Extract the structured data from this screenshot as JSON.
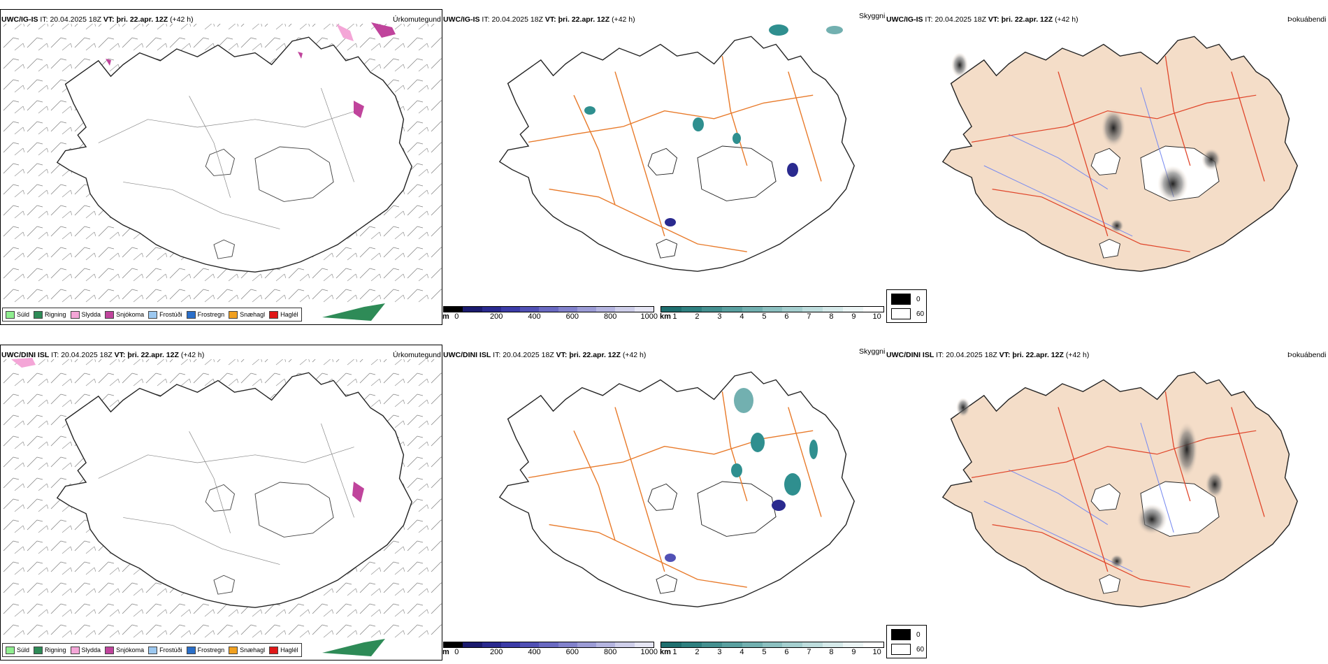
{
  "rows": [
    {
      "id": "row1",
      "model": "UWC/IG-IS",
      "it_label": "IT:",
      "it_value": "20.04.2025 18Z",
      "vt_label": "VT:",
      "vt_value": "þri. 22.apr. 12Z",
      "lead": "(+42 h)",
      "titles": {
        "precip": "Úrkomutegund",
        "ceiling": "Skyggni",
        "fog": "Þokuábendi"
      }
    },
    {
      "id": "row2",
      "model": "UWC/DINI ISL",
      "it_label": "IT:",
      "it_value": "20.04.2025 18Z",
      "vt_label": "VT:",
      "vt_value": "þri. 22.apr. 12Z",
      "lead": "(+42 h)",
      "titles": {
        "precip": "Úrkomutegund",
        "ceiling": "Skyggni",
        "fog": "Þokuábendi"
      }
    }
  ],
  "precip_legend": [
    {
      "label": "Súld",
      "color": "#90ee90"
    },
    {
      "label": "Rigning",
      "color": "#2e8b57"
    },
    {
      "label": "Slydda",
      "color": "#f4a6d7"
    },
    {
      "label": "Snjókoma",
      "color": "#c0449c"
    },
    {
      "label": "Frostúði",
      "color": "#9cc8f0"
    },
    {
      "label": "Frostregn",
      "color": "#2a6fc9"
    },
    {
      "label": "Snæhagl",
      "color": "#f0a020"
    },
    {
      "label": "Haglél",
      "color": "#e01818"
    }
  ],
  "ceiling_scale": {
    "unit": "m",
    "ticks": [
      "0",
      "200",
      "400",
      "600",
      "800",
      "1000"
    ],
    "colors": [
      "#000000",
      "#1b1b6e",
      "#2a2a8f",
      "#3c3ca8",
      "#5151b5",
      "#6a6ac2",
      "#8282cc",
      "#9c9cd6",
      "#b5b5e0",
      "#cfcfea",
      "#e6e6f4"
    ]
  },
  "visibility_scale": {
    "unit": "km",
    "ticks": [
      "1",
      "2",
      "3",
      "4",
      "5",
      "6",
      "7",
      "8",
      "9",
      "10"
    ],
    "colors": [
      "#1f6f6f",
      "#2f8080",
      "#459090",
      "#5aa0a0",
      "#72b0b0",
      "#8cc0c0",
      "#a5cfcf",
      "#bedddd",
      "#d6eaea",
      "#ecf5f5",
      "#ffffff"
    ]
  },
  "fog_scale": {
    "high": "0",
    "low": "60",
    "high_color": "#000000",
    "low_color": "#ffffff"
  },
  "colors": {
    "land_fog": "#f4ddc8",
    "roads": "#e87a2a",
    "roads_fog": "#e0452a",
    "rivers": "#7a8cf0",
    "coast": "#222222",
    "teal": "#2f8f8f",
    "magenta": "#c0449c",
    "pink": "#f4a6d7",
    "green": "#2e8b57"
  }
}
